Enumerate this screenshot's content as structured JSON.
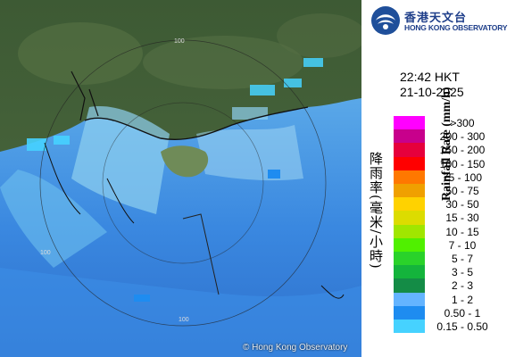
{
  "organization": {
    "name_cn": "香港天文台",
    "name_en": "HONG KONG OBSERVATORY"
  },
  "observation": {
    "time": "22:42 HKT",
    "date": "21-10-2025"
  },
  "legend": {
    "title_cn": "降雨率(毫米/小時)",
    "title_en": "Rainfall Rate (mm/h)",
    "items": [
      {
        "label": ">300",
        "color": "#ff00ff"
      },
      {
        "label": "200 - 300",
        "color": "#c8008c"
      },
      {
        "label": "150 - 200",
        "color": "#e6003c"
      },
      {
        "label": "100 - 150",
        "color": "#ff0000"
      },
      {
        "label": "75 - 100",
        "color": "#ff7800"
      },
      {
        "label": "50 - 75",
        "color": "#f0a000"
      },
      {
        "label": "30 - 50",
        "color": "#ffd200"
      },
      {
        "label": "15 - 30",
        "color": "#dcdc00"
      },
      {
        "label": "10 - 15",
        "color": "#a0e600"
      },
      {
        "label": "7 - 10",
        "color": "#50f000"
      },
      {
        "label": "5 - 7",
        "color": "#2ad22a"
      },
      {
        "label": "3 - 5",
        "color": "#14b43c"
      },
      {
        "label": "2 - 3",
        "color": "#148c46"
      },
      {
        "label": "1 - 2",
        "color": "#64b4ff"
      },
      {
        "label": "0.50 - 1",
        "color": "#1e8cf0"
      },
      {
        "label": "0.15 - 0.50",
        "color": "#46d2ff"
      }
    ]
  },
  "map": {
    "range_rings": [
      "100",
      "100",
      "100"
    ],
    "copyright": "© Hong Kong Observatory"
  }
}
